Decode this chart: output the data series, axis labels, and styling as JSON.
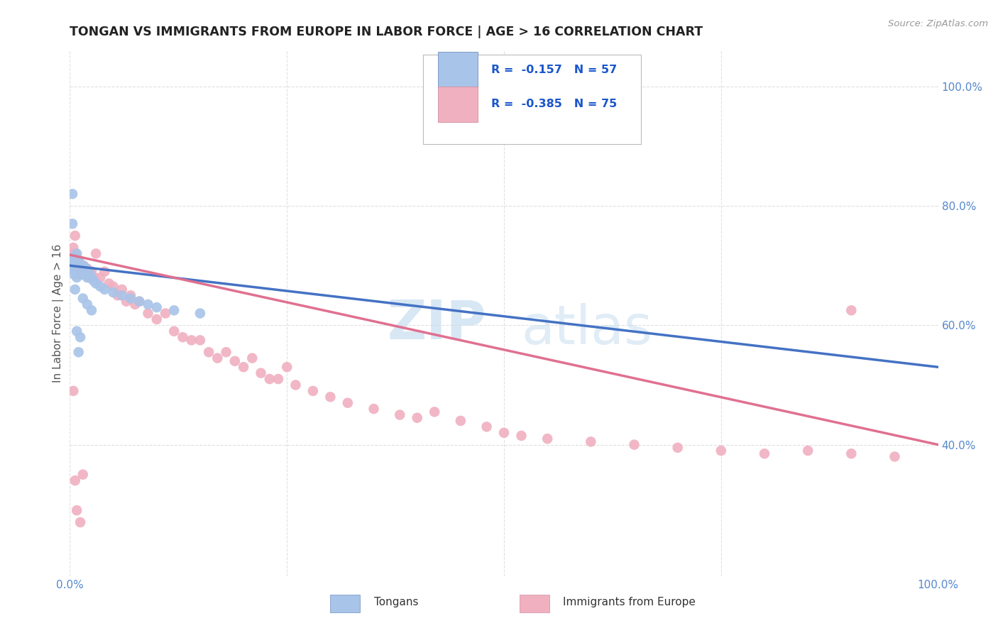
{
  "title": "TONGAN VS IMMIGRANTS FROM EUROPE IN LABOR FORCE | AGE > 16 CORRELATION CHART",
  "source": "Source: ZipAtlas.com",
  "ylabel": "In Labor Force | Age > 16",
  "legend_labels": [
    "Tongans",
    "Immigrants from Europe"
  ],
  "blue_marker_color": "#a8c4e8",
  "pink_marker_color": "#f0b0c0",
  "blue_line_color": "#4472c4",
  "pink_line_color": "#e07090",
  "r_color": "#1a56cc",
  "xmin": 0.0,
  "xmax": 1.0,
  "ymin": 0.18,
  "ymax": 1.06,
  "right_yticks": [
    0.4,
    0.6,
    0.8,
    1.0
  ],
  "right_yticklabels": [
    "40.0%",
    "60.0%",
    "80.0%",
    "100.0%"
  ],
  "blue_points_x": [
    0.002,
    0.003,
    0.004,
    0.004,
    0.005,
    0.005,
    0.006,
    0.006,
    0.007,
    0.007,
    0.008,
    0.008,
    0.009,
    0.009,
    0.01,
    0.01,
    0.01,
    0.011,
    0.011,
    0.012,
    0.012,
    0.013,
    0.013,
    0.014,
    0.014,
    0.015,
    0.015,
    0.016,
    0.017,
    0.018,
    0.019,
    0.02,
    0.021,
    0.022,
    0.023,
    0.025,
    0.027,
    0.03,
    0.035,
    0.04,
    0.05,
    0.06,
    0.07,
    0.08,
    0.09,
    0.1,
    0.12,
    0.15,
    0.003,
    0.006,
    0.008,
    0.01,
    0.012,
    0.015,
    0.02,
    0.025,
    0.003
  ],
  "blue_points_y": [
    0.7,
    0.71,
    0.695,
    0.705,
    0.685,
    0.715,
    0.7,
    0.69,
    0.71,
    0.695,
    0.68,
    0.72,
    0.7,
    0.71,
    0.695,
    0.685,
    0.7,
    0.695,
    0.705,
    0.69,
    0.7,
    0.695,
    0.685,
    0.7,
    0.695,
    0.685,
    0.7,
    0.695,
    0.685,
    0.69,
    0.695,
    0.68,
    0.685,
    0.69,
    0.685,
    0.68,
    0.675,
    0.67,
    0.665,
    0.66,
    0.655,
    0.65,
    0.645,
    0.64,
    0.635,
    0.63,
    0.625,
    0.62,
    0.82,
    0.66,
    0.59,
    0.555,
    0.58,
    0.645,
    0.635,
    0.625,
    0.77
  ],
  "pink_points_x": [
    0.003,
    0.004,
    0.005,
    0.006,
    0.007,
    0.008,
    0.009,
    0.01,
    0.011,
    0.012,
    0.013,
    0.014,
    0.015,
    0.016,
    0.017,
    0.018,
    0.02,
    0.022,
    0.025,
    0.028,
    0.03,
    0.035,
    0.04,
    0.045,
    0.05,
    0.055,
    0.06,
    0.065,
    0.07,
    0.075,
    0.08,
    0.09,
    0.1,
    0.11,
    0.12,
    0.13,
    0.14,
    0.15,
    0.16,
    0.17,
    0.18,
    0.19,
    0.2,
    0.21,
    0.22,
    0.23,
    0.24,
    0.25,
    0.26,
    0.28,
    0.3,
    0.32,
    0.35,
    0.38,
    0.4,
    0.42,
    0.45,
    0.48,
    0.5,
    0.52,
    0.55,
    0.6,
    0.65,
    0.7,
    0.75,
    0.8,
    0.85,
    0.9,
    0.95,
    0.004,
    0.006,
    0.008,
    0.012,
    0.015,
    0.9
  ],
  "pink_points_y": [
    0.72,
    0.73,
    0.71,
    0.75,
    0.72,
    0.7,
    0.695,
    0.71,
    0.7,
    0.695,
    0.685,
    0.7,
    0.69,
    0.7,
    0.695,
    0.685,
    0.695,
    0.68,
    0.69,
    0.68,
    0.72,
    0.68,
    0.69,
    0.67,
    0.665,
    0.65,
    0.66,
    0.64,
    0.65,
    0.635,
    0.64,
    0.62,
    0.61,
    0.62,
    0.59,
    0.58,
    0.575,
    0.575,
    0.555,
    0.545,
    0.555,
    0.54,
    0.53,
    0.545,
    0.52,
    0.51,
    0.51,
    0.53,
    0.5,
    0.49,
    0.48,
    0.47,
    0.46,
    0.45,
    0.445,
    0.455,
    0.44,
    0.43,
    0.42,
    0.415,
    0.41,
    0.405,
    0.4,
    0.395,
    0.39,
    0.385,
    0.39,
    0.385,
    0.38,
    0.49,
    0.34,
    0.29,
    0.27,
    0.35,
    0.625
  ],
  "blue_trend_x": [
    0.0,
    1.0
  ],
  "blue_trend_y_start": 0.7,
  "blue_trend_y_end": 0.53,
  "pink_trend_x": [
    0.0,
    1.0
  ],
  "pink_trend_y_start": 0.718,
  "pink_trend_y_end": 0.4,
  "watermark_top": "ZIP",
  "watermark_bot": "atlas",
  "watermark_color": "#c8ddf0",
  "grid_color": "#e0e0e0",
  "background_color": "#ffffff"
}
